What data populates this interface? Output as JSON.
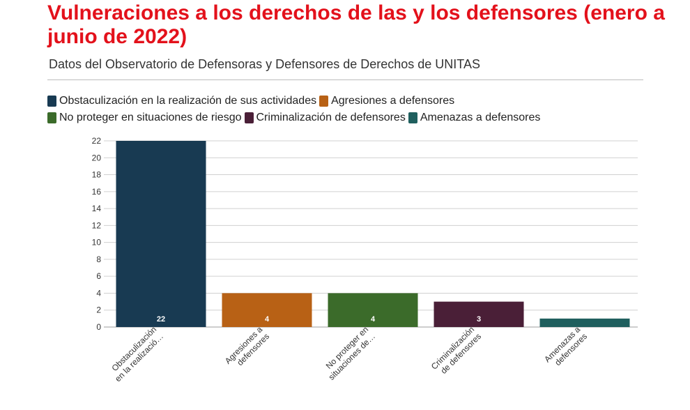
{
  "title": "Vulneraciones a los derechos de las y los defensores (enero a junio de 2022)",
  "subtitle": "Datos del Observatorio de Defensoras y Defensores de Derechos de UNITAS",
  "chart_data": {
    "type": "bar",
    "categories": [
      "Obstaculización en la realizació…",
      "Agresiones a defensores",
      "No proteger en situaciones de…",
      "Criminalización de defensores",
      "Amenazas a defensores"
    ],
    "category_lines": [
      [
        "Obstaculización",
        "en la realizació…"
      ],
      [
        "Agresiones a",
        "defensores"
      ],
      [
        "No proteger en",
        "situaciones de…"
      ],
      [
        "Criminalización",
        "de defensores"
      ],
      [
        "Amenazas a",
        "defensores"
      ]
    ],
    "values": [
      22,
      4,
      4,
      3,
      1
    ],
    "data_labels": [
      "22",
      "4",
      "4",
      "3",
      ""
    ],
    "colors": [
      "#183a52",
      "#b86115",
      "#3b6b2a",
      "#4a1f37",
      "#1f5f5e"
    ],
    "legend": [
      "Obstaculización en la realización de sus actividades",
      "Agresiones a defensores",
      "No proteger en situaciones de riesgo",
      "Criminalización de defensores",
      "Amenazas a defensores"
    ],
    "legend_position": "top-left",
    "ylim": [
      0,
      22
    ],
    "yticks": [
      0,
      2,
      4,
      6,
      8,
      10,
      12,
      14,
      16,
      18,
      20,
      22
    ],
    "grid": true,
    "xlabel": "",
    "ylabel": ""
  }
}
